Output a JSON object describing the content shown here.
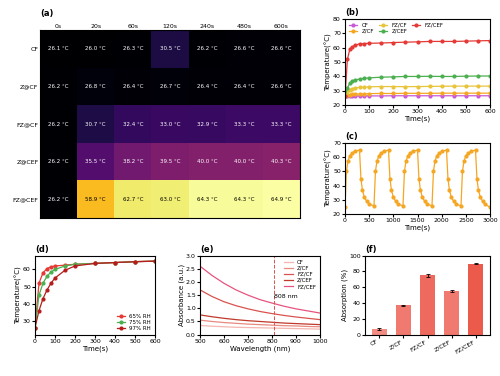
{
  "chart_data": [
    {
      "type": "heatmap",
      "title": "(a)",
      "rows": [
        "CF",
        "Z@CF",
        "FZ@CF",
        "Z@CEF",
        "FZ@CEF"
      ],
      "columns": [
        "0s",
        "20s",
        "60s",
        "120s",
        "240s",
        "480s",
        "600s"
      ],
      "cells": [
        [
          26.1,
          26.0,
          26.3,
          30.5,
          26.2,
          26.6,
          26.6
        ],
        [
          26.2,
          26.8,
          26.4,
          26.7,
          26.4,
          26.4,
          26.6
        ],
        [
          26.2,
          30.7,
          32.4,
          33.0,
          32.9,
          33.3,
          33.3
        ],
        [
          26.2,
          35.5,
          38.2,
          39.5,
          40.0,
          40.0,
          40.3
        ],
        [
          26.2,
          58.9,
          62.7,
          63.0,
          64.3,
          64.3,
          64.9
        ]
      ],
      "value_labels": [
        [
          "26.1 °C",
          "26.0 °C",
          "26.3 °C",
          "30.5 °C",
          "26.2 °C",
          "26.6 °C",
          "26.6 °C"
        ],
        [
          "26.2 °C",
          "26.8 °C",
          "26.4 °C",
          "26.7 °C",
          "26.4 °C",
          "26.4 °C",
          "26.6 °C"
        ],
        [
          "26.2 °C",
          "30.7 °C",
          "32.4 °C",
          "33.0 °C",
          "32.9 °C",
          "33.3 °C",
          "33.3 °C"
        ],
        [
          "26.2 °C",
          "35.5 °C",
          "38.2 °C",
          "39.5 °C",
          "40.0 °C",
          "40.0 °C",
          "40.3 °C"
        ],
        [
          "26.2 °C",
          "58.9 °C",
          "62.7 °C",
          "63.0 °C",
          "64.3 °C",
          "64.3 °C",
          "64.9 °C"
        ]
      ],
      "data_labels": true
    },
    {
      "type": "line",
      "title": "(b)",
      "x_label": "Time(s)",
      "y_label": "Temperature(°C)",
      "x": [
        0,
        10,
        20,
        30,
        40,
        60,
        80,
        100,
        150,
        200,
        250,
        300,
        350,
        400,
        450,
        500,
        550,
        600
      ],
      "series": [
        {
          "name": "CF",
          "color": "#c85ad8",
          "marker": "circle",
          "line_style": "solid",
          "values": [
            26.1,
            26.2,
            26.3,
            26.3,
            26.4,
            26.4,
            26.5,
            26.5,
            26.5,
            26.6,
            26.6,
            26.6,
            26.6,
            26.6,
            26.6,
            26.6,
            26.6,
            26.6
          ]
        },
        {
          "name": "Z/CF",
          "color": "#f5a623",
          "marker": "circle",
          "line_style": "solid",
          "values": [
            26.2,
            26.8,
            27.2,
            27.5,
            27.7,
            27.9,
            28.0,
            28.1,
            28.2,
            28.2,
            28.3,
            28.3,
            28.3,
            28.4,
            28.4,
            28.4,
            28.4,
            28.4
          ]
        },
        {
          "name": "FZ/CF",
          "color": "#e8c43a",
          "marker": "circle",
          "line_style": "solid",
          "values": [
            26.2,
            29.5,
            30.7,
            31.5,
            32.0,
            32.4,
            32.6,
            32.8,
            33.0,
            33.0,
            32.9,
            33.0,
            33.1,
            33.2,
            33.3,
            33.3,
            33.3,
            33.3
          ]
        },
        {
          "name": "Z/CEF",
          "color": "#4caf50",
          "marker": "circle",
          "line_style": "solid",
          "values": [
            26.2,
            32.0,
            35.5,
            36.8,
            37.5,
            38.2,
            38.7,
            39.0,
            39.5,
            39.7,
            40.0,
            40.0,
            40.1,
            40.0,
            40.0,
            40.2,
            40.3,
            40.3
          ]
        },
        {
          "name": "FZ/CEF",
          "color": "#e53935",
          "marker": "circle",
          "line_style": "solid",
          "values": [
            26.2,
            52.0,
            58.9,
            60.5,
            61.5,
            62.7,
            62.8,
            63.0,
            63.2,
            63.5,
            63.8,
            64.0,
            64.3,
            64.3,
            64.3,
            64.5,
            64.7,
            64.9
          ]
        }
      ],
      "xlim": [
        0,
        600
      ],
      "xticks": [
        0,
        100,
        200,
        300,
        400,
        500,
        600
      ],
      "ylim": [
        20,
        80
      ],
      "yticks": [
        20,
        30,
        40,
        50,
        60,
        70,
        80
      ],
      "legend": "upper left",
      "grid": false
    },
    {
      "type": "line",
      "title": "(c)",
      "x_label": "Time(s)",
      "y_label": "Temperature(°C)",
      "x": [
        0,
        30,
        60,
        100,
        150,
        200,
        300,
        330,
        360,
        400,
        450,
        500,
        600,
        630,
        660,
        700,
        750,
        800,
        900,
        930,
        960,
        1000,
        1050,
        1100,
        1200,
        1230,
        1260,
        1300,
        1350,
        1400,
        1500,
        1530,
        1560,
        1600,
        1650,
        1700,
        1800,
        1830,
        1860,
        1900,
        1950,
        2000,
        2100,
        2130,
        2160,
        2200,
        2250,
        2300,
        2400,
        2430,
        2460,
        2500,
        2550,
        2600,
        2700,
        2730,
        2760,
        2800,
        2850,
        2900,
        3000
      ],
      "series": [
        {
          "color": "#f5a623",
          "marker": "circle",
          "line_style": "solid",
          "values": [
            25,
            50,
            57,
            61,
            63,
            64,
            65,
            45,
            37,
            32,
            29,
            27,
            26,
            50,
            57,
            61,
            63,
            64,
            65,
            45,
            37,
            32,
            29,
            27,
            26,
            50,
            57,
            61,
            63,
            64,
            65,
            45,
            37,
            32,
            29,
            27,
            26,
            50,
            57,
            61,
            63,
            64,
            65,
            45,
            37,
            32,
            29,
            27,
            26,
            50,
            57,
            61,
            63,
            64,
            65,
            45,
            37,
            32,
            29,
            27,
            25
          ]
        }
      ],
      "xlim": [
        0,
        3000
      ],
      "xticks": [
        0,
        500,
        1000,
        1500,
        2000,
        2500,
        3000
      ],
      "ylim": [
        20,
        70
      ],
      "yticks": [
        20,
        30,
        40,
        50,
        60,
        70
      ],
      "grid": false
    },
    {
      "type": "line",
      "title": "(d)",
      "x_label": "Time(s)",
      "y_label": "Temperature(°C)",
      "x": [
        0,
        20,
        40,
        60,
        80,
        100,
        150,
        200,
        300,
        400,
        500,
        600
      ],
      "series": [
        {
          "name": "65% RH",
          "color": "#e53935",
          "marker": "circle",
          "line_style": "solid",
          "values": [
            26,
            52,
            58,
            60.5,
            61.5,
            62,
            62.5,
            63,
            63.5,
            64,
            64.5,
            64.9
          ]
        },
        {
          "name": "75% RH",
          "color": "#4caf50",
          "marker": "circle",
          "line_style": "solid",
          "values": [
            26,
            45,
            52,
            56,
            58.5,
            60,
            62,
            63,
            63.5,
            64,
            64.5,
            64.8
          ]
        },
        {
          "name": "97% RH",
          "color": "#b71c1c",
          "marker": "circle",
          "line_style": "solid",
          "values": [
            26,
            36,
            43,
            48,
            52,
            55,
            59.5,
            62,
            63.5,
            64,
            64.5,
            64.8
          ]
        }
      ],
      "xlim": [
        0,
        600
      ],
      "xticks": [
        0,
        100,
        200,
        300,
        400,
        500,
        600
      ],
      "ylim": [
        22,
        68
      ],
      "yticks": [
        30,
        40,
        50,
        60
      ],
      "legend": "lower right",
      "grid": false
    },
    {
      "type": "line",
      "title": "(e)",
      "x_label": "Wavelength (nm)",
      "y_label": "Absorbance (a.u.)",
      "x": [
        500,
        550,
        600,
        650,
        700,
        750,
        800,
        850,
        900,
        950,
        1000
      ],
      "series": [
        {
          "name": "CF",
          "color": "#f4b6b0",
          "line_style": "solid",
          "values": [
            0.35,
            0.32,
            0.3,
            0.28,
            0.27,
            0.26,
            0.25,
            0.24,
            0.23,
            0.22,
            0.21
          ]
        },
        {
          "name": "Z/CF",
          "color": "#e98a80",
          "line_style": "solid",
          "values": [
            0.55,
            0.5,
            0.46,
            0.43,
            0.4,
            0.38,
            0.36,
            0.34,
            0.33,
            0.31,
            0.3
          ]
        },
        {
          "name": "FZ/CF",
          "color": "#d9534f",
          "line_style": "solid",
          "values": [
            1.7,
            1.45,
            1.25,
            1.1,
            0.98,
            0.88,
            0.8,
            0.73,
            0.67,
            0.62,
            0.57
          ]
        },
        {
          "name": "Z/CEF",
          "color": "#c0392b",
          "line_style": "solid",
          "values": [
            0.75,
            0.68,
            0.62,
            0.57,
            0.53,
            0.5,
            0.47,
            0.44,
            0.42,
            0.4,
            0.38
          ]
        },
        {
          "name": "FZ/CEF",
          "color": "#e75480",
          "line_style": "solid",
          "values": [
            2.6,
            2.25,
            1.95,
            1.7,
            1.5,
            1.33,
            1.2,
            1.08,
            0.98,
            0.9,
            0.82
          ]
        }
      ],
      "annotations": [
        {
          "x": 808,
          "text": "808 nm"
        }
      ],
      "xlim": [
        500,
        1000
      ],
      "xticks": [
        500,
        600,
        700,
        800,
        900,
        1000
      ],
      "ylim": [
        0.0,
        3.0
      ],
      "yticks": [
        0.0,
        0.5,
        1.0,
        1.5,
        2.0,
        2.5,
        3.0
      ],
      "legend": "upper right",
      "grid": false
    },
    {
      "type": "bar",
      "title": "(f)",
      "y_label": "Absorption (%)",
      "categories": [
        "CF",
        "Z/CF",
        "FZ/CF",
        "Z/CEF",
        "FZ/CEF"
      ],
      "values": [
        7,
        37,
        75,
        55,
        90
      ],
      "errors": [
        1,
        1,
        1.5,
        1,
        1
      ],
      "colors": [
        "#f28b82",
        "#f07a70",
        "#ee6a5e",
        "#f07a70",
        "#ec5a4c"
      ],
      "ylim": [
        0,
        100
      ],
      "yticks": [
        0,
        20,
        40,
        60,
        80,
        100
      ],
      "grid": false
    }
  ]
}
